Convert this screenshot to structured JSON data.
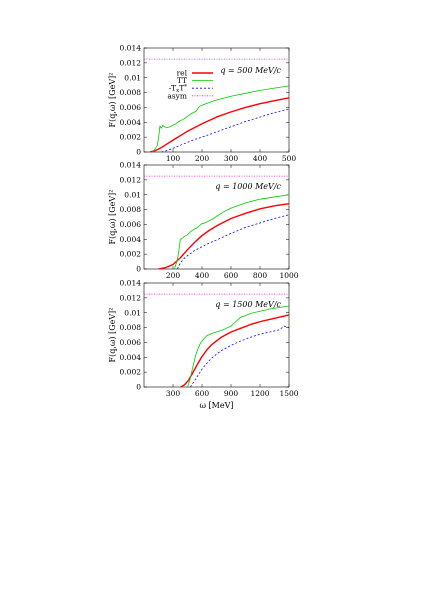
{
  "chart_data": [
    {
      "type": "line",
      "annotation": "q = 500 MeV/c",
      "xlim": [
        0,
        500
      ],
      "ylim": [
        0,
        0.014
      ],
      "xticks": [
        "100",
        "200",
        "300",
        "400",
        "500"
      ],
      "xtick_values": [
        100,
        200,
        300,
        400,
        500
      ],
      "yticks": [
        "0",
        "0.002",
        "0.004",
        "0.006",
        "0.008",
        "0.01",
        "0.012",
        "0.014"
      ],
      "ytick_values": [
        0,
        0.002,
        0.004,
        0.006,
        0.008,
        0.01,
        0.012,
        0.014
      ],
      "ylabel": "F(q,ω) [GeV]²",
      "xlabel": "",
      "legend": {
        "placement": "top-right"
      },
      "series": [
        {
          "name": "rel",
          "color": "#ff0000",
          "dash": "",
          "width": 1.4,
          "x": [
            20,
            40,
            60,
            80,
            100,
            125,
            150,
            175,
            200,
            250,
            300,
            350,
            400,
            450,
            500
          ],
          "y": [
            0,
            0.0002,
            0.0006,
            0.0011,
            0.0016,
            0.0022,
            0.0028,
            0.0033,
            0.0038,
            0.0047,
            0.0054,
            0.006,
            0.0065,
            0.0069,
            0.0073
          ]
        },
        {
          "name": "TT",
          "color": "#00cc00",
          "dash": "",
          "width": 0.8,
          "x": [
            30,
            45,
            50,
            55,
            60,
            65,
            70,
            80,
            90,
            100,
            110,
            120,
            130,
            140,
            150,
            165,
            180,
            190,
            200,
            220,
            250,
            300,
            350,
            400,
            450,
            500
          ],
          "y": [
            0,
            0.0008,
            0.0018,
            0.0035,
            0.0032,
            0.0036,
            0.0034,
            0.0033,
            0.0034,
            0.0036,
            0.0038,
            0.0041,
            0.0043,
            0.0045,
            0.0048,
            0.0052,
            0.0055,
            0.0061,
            0.0063,
            0.0066,
            0.007,
            0.0075,
            0.0079,
            0.0083,
            0.0086,
            0.0089
          ]
        },
        {
          "name": "-T_x T^*",
          "color": "#0000ff",
          "dash": "2,2",
          "width": 0.8,
          "x": [
            60,
            80,
            100,
            125,
            150,
            175,
            200,
            250,
            300,
            350,
            400,
            450,
            500
          ],
          "y": [
            0,
            0.0002,
            0.0005,
            0.0009,
            0.0013,
            0.0017,
            0.002,
            0.0027,
            0.0034,
            0.0041,
            0.0047,
            0.0053,
            0.0058
          ]
        },
        {
          "name": "asym",
          "color": "#ff00ff",
          "dash": "1,1.5",
          "width": 0.8,
          "x": [
            0,
            500
          ],
          "y": [
            0.0125,
            0.0125
          ]
        }
      ]
    },
    {
      "type": "line",
      "annotation": "q = 1000 MeV/c",
      "xlim": [
        0,
        1000
      ],
      "ylim": [
        0,
        0.014
      ],
      "xticks": [
        "200",
        "400",
        "600",
        "800",
        "1000"
      ],
      "xtick_values": [
        200,
        400,
        600,
        800,
        1000
      ],
      "yticks": [
        "0",
        "0.002",
        "0.004",
        "0.006",
        "0.008",
        "0.01",
        "0.012",
        "0.014"
      ],
      "ytick_values": [
        0,
        0.002,
        0.004,
        0.006,
        0.008,
        0.01,
        0.012,
        0.014
      ],
      "ylabel": "F(q,ω) [GeV]²",
      "xlabel": "",
      "series": [
        {
          "name": "rel",
          "color": "#ff0000",
          "dash": "",
          "width": 1.4,
          "x": [
            100,
            150,
            200,
            250,
            300,
            350,
            400,
            450,
            500,
            600,
            700,
            800,
            900,
            1000
          ],
          "y": [
            0,
            0.0002,
            0.0006,
            0.0015,
            0.0026,
            0.0036,
            0.0045,
            0.0052,
            0.0058,
            0.0068,
            0.0075,
            0.0081,
            0.0085,
            0.0088
          ]
        },
        {
          "name": "TT",
          "color": "#00cc00",
          "dash": "",
          "width": 0.8,
          "x": [
            210,
            220,
            230,
            240,
            250,
            260,
            280,
            300,
            320,
            340,
            360,
            380,
            400,
            420,
            440,
            460,
            480,
            500,
            550,
            600,
            700,
            800,
            900,
            1000
          ],
          "y": [
            0,
            0.0006,
            0.0012,
            0.0024,
            0.0039,
            0.0041,
            0.0044,
            0.0046,
            0.005,
            0.0053,
            0.0055,
            0.0058,
            0.0061,
            0.0062,
            0.0064,
            0.0066,
            0.0068,
            0.0071,
            0.0077,
            0.0082,
            0.0089,
            0.0094,
            0.0097,
            0.01
          ]
        },
        {
          "name": "-T_x T^*",
          "color": "#0000ff",
          "dash": "2,2",
          "width": 0.8,
          "x": [
            230,
            250,
            270,
            300,
            350,
            400,
            450,
            500,
            600,
            700,
            800,
            900,
            1000
          ],
          "y": [
            0,
            0.0008,
            0.0013,
            0.0018,
            0.0025,
            0.003,
            0.0035,
            0.0039,
            0.0048,
            0.0056,
            0.0062,
            0.0068,
            0.0073
          ]
        },
        {
          "name": "asym",
          "color": "#ff00ff",
          "dash": "1,1.5",
          "width": 0.8,
          "x": [
            0,
            1000
          ],
          "y": [
            0.0125,
            0.0125
          ]
        }
      ]
    },
    {
      "type": "line",
      "annotation": "q = 1500 MeV/c",
      "xlim": [
        0,
        1500
      ],
      "ylim": [
        0,
        0.014
      ],
      "xticks": [
        "300",
        "600",
        "900",
        "1200",
        "1500"
      ],
      "xtick_values": [
        300,
        600,
        900,
        1200,
        1500
      ],
      "yticks": [
        "0",
        "0.002",
        "0.004",
        "0.006",
        "0.008",
        "0.01",
        "0.012",
        "0.014"
      ],
      "ytick_values": [
        0,
        0.002,
        0.004,
        0.006,
        0.008,
        0.01,
        0.012,
        0.014
      ],
      "ylabel": "F(q,ω) [GeV]²",
      "xlabel": "ω [MeV]",
      "series": [
        {
          "name": "rel",
          "color": "#ff0000",
          "dash": "",
          "width": 1.4,
          "x": [
            380,
            420,
            460,
            500,
            550,
            600,
            650,
            700,
            800,
            900,
            1000,
            1100,
            1200,
            1300,
            1400,
            1500
          ],
          "y": [
            0,
            0.0003,
            0.0009,
            0.0018,
            0.003,
            0.0041,
            0.005,
            0.0057,
            0.0067,
            0.0074,
            0.0079,
            0.0084,
            0.0088,
            0.0091,
            0.0094,
            0.0097
          ]
        },
        {
          "name": "TT",
          "color": "#00cc00",
          "dash": "",
          "width": 0.8,
          "x": [
            450,
            480,
            500,
            520,
            540,
            560,
            580,
            600,
            650,
            700,
            750,
            800,
            850,
            900,
            950,
            1000,
            1050,
            1100,
            1200,
            1300,
            1400,
            1500
          ],
          "y": [
            0,
            0.0012,
            0.0024,
            0.0035,
            0.0045,
            0.0052,
            0.0058,
            0.0062,
            0.0069,
            0.0072,
            0.0074,
            0.0076,
            0.0079,
            0.0082,
            0.0088,
            0.0094,
            0.0096,
            0.0099,
            0.0102,
            0.0105,
            0.0107,
            0.0109
          ]
        },
        {
          "name": "-T_x T^*",
          "color": "#0000ff",
          "dash": "2,2",
          "width": 0.8,
          "x": [
            480,
            520,
            560,
            600,
            650,
            700,
            800,
            900,
            1000,
            1100,
            1200,
            1300,
            1400,
            1450,
            1500
          ],
          "y": [
            0,
            0.0008,
            0.0016,
            0.0024,
            0.0032,
            0.0039,
            0.0049,
            0.0056,
            0.0062,
            0.0067,
            0.0071,
            0.0074,
            0.0077,
            0.0082,
            0.008
          ]
        },
        {
          "name": "asym",
          "color": "#ff00ff",
          "dash": "1,1.5",
          "width": 0.8,
          "x": [
            0,
            1500
          ],
          "y": [
            0.0125,
            0.0125
          ]
        }
      ]
    }
  ]
}
